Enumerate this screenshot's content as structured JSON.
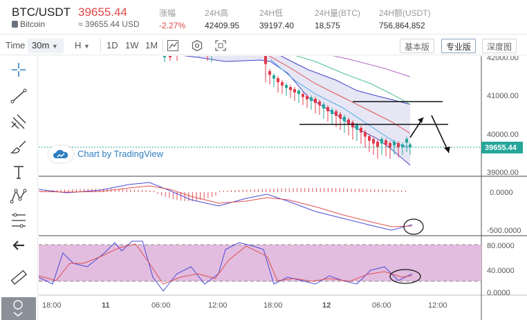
{
  "header": {
    "pair": "BTC/USDT",
    "coin_name": "Bitcoin",
    "price": "39655.44",
    "approx": "≈ 39655.44 USD",
    "stats": [
      {
        "label": "涨幅",
        "value": "-2.27%",
        "red": true
      },
      {
        "label": "24H高",
        "value": "42409.95"
      },
      {
        "label": "24H低",
        "value": "39197.40"
      },
      {
        "label": "24H量(BTC)",
        "value": "18,575"
      },
      {
        "label": "24H额(USDT)",
        "value": "756,864,852"
      }
    ]
  },
  "toolbar": {
    "time_label": "Time",
    "interval": "30m",
    "chart_type": "H",
    "ranges": [
      "1D",
      "1W",
      "1M"
    ],
    "view_buttons": [
      "基本版",
      "专业版",
      "深度图"
    ],
    "active_view": "专业版"
  },
  "watermark": "Chart by TradingView",
  "axes": {
    "price_ticks": [
      "42000.00",
      "41000.00",
      "40000.00",
      "39000.00"
    ],
    "current_price_tag": "39655.44",
    "macd_ticks": [
      "0.0000",
      "-500.0000"
    ],
    "stoch_ticks": [
      "80.0000",
      "40.0000",
      "0.0000"
    ],
    "time_ticks": [
      "18:00",
      "11",
      "06:00",
      "12:00",
      "18:00",
      "12",
      "06:00",
      "12:00"
    ]
  },
  "colors": {
    "up": "#26a69a",
    "down": "#e0394a",
    "price_line": "#26a69a",
    "band_fill": "#e6e6f5",
    "stoch_bg": "#e2bde0"
  }
}
